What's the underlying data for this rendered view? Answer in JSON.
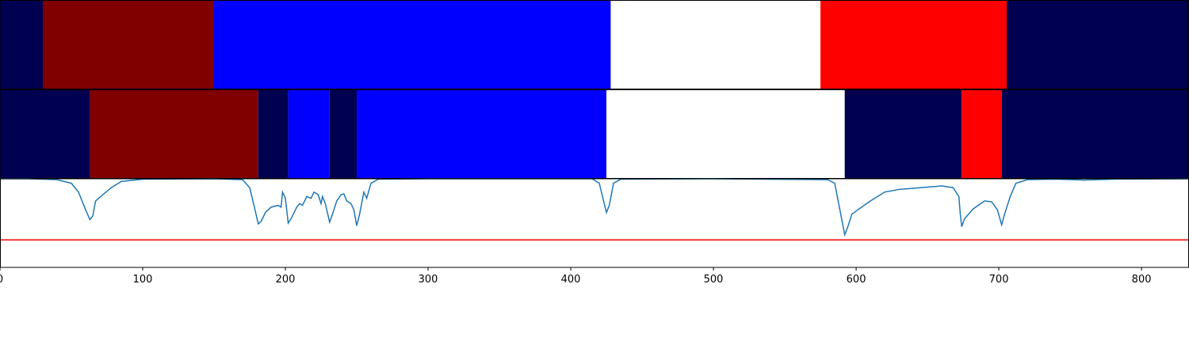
{
  "chart_data": [
    {
      "type": "segments",
      "xlim": [
        0,
        833
      ],
      "segments": [
        {
          "start": 0,
          "end": 30,
          "color": "#000050"
        },
        {
          "start": 30,
          "end": 150,
          "color": "#800000"
        },
        {
          "start": 150,
          "end": 428,
          "color": "#0000ff"
        },
        {
          "start": 428,
          "end": 575,
          "color": "#ffffff"
        },
        {
          "start": 575,
          "end": 705.5,
          "color": "#ff0000"
        },
        {
          "start": 705.5,
          "end": 833,
          "color": "#000050"
        }
      ]
    },
    {
      "type": "segments",
      "xlim": [
        0,
        833
      ],
      "segments": [
        {
          "start": 0,
          "end": 63,
          "color": "#000050"
        },
        {
          "start": 63,
          "end": 181,
          "color": "#800000"
        },
        {
          "start": 181,
          "end": 202,
          "color": "#000050"
        },
        {
          "start": 202,
          "end": 231,
          "color": "#0000ff"
        },
        {
          "start": 231,
          "end": 250,
          "color": "#000050"
        },
        {
          "start": 250,
          "end": 425,
          "color": "#0000ff"
        },
        {
          "start": 425,
          "end": 592,
          "color": "#ffffff"
        },
        {
          "start": 592,
          "end": 674,
          "color": "#000050"
        },
        {
          "start": 674,
          "end": 702,
          "color": "#ff0000"
        },
        {
          "start": 702,
          "end": 833,
          "color": "#000050"
        }
      ]
    },
    {
      "type": "line",
      "xlim": [
        0,
        833
      ],
      "ylim": [
        0,
        1.0
      ],
      "xticks": [
        0,
        100,
        200,
        300,
        400,
        500,
        600,
        700,
        800
      ],
      "color": "#1f77b4",
      "threshold": 0.31,
      "threshold_color": "#ff0000",
      "x": [
        0,
        20,
        40,
        50,
        55,
        60,
        63,
        65,
        67,
        72,
        78,
        85,
        100,
        150,
        170,
        175,
        178,
        181,
        183,
        186,
        190,
        195,
        197,
        198,
        200,
        202,
        204,
        208,
        210,
        212,
        215,
        218,
        220,
        223,
        225,
        226,
        228,
        231,
        233,
        236,
        239,
        241,
        243,
        246,
        248,
        250,
        252,
        255,
        257,
        260,
        265,
        300,
        415,
        420,
        423,
        425,
        427,
        430,
        435,
        500,
        580,
        585,
        588,
        592,
        594,
        597,
        602,
        610,
        620,
        630,
        645,
        660,
        668,
        672,
        673,
        674,
        676,
        682,
        690,
        695,
        699,
        702,
        704,
        708,
        712,
        720,
        740,
        760,
        780,
        833
      ],
      "values": [
        1.0,
        1.0,
        0.99,
        0.95,
        0.85,
        0.65,
        0.54,
        0.58,
        0.75,
        0.82,
        0.9,
        0.97,
        0.995,
        1.0,
        0.99,
        0.9,
        0.7,
        0.49,
        0.52,
        0.62,
        0.68,
        0.7,
        0.68,
        0.85,
        0.78,
        0.5,
        0.55,
        0.68,
        0.72,
        0.7,
        0.8,
        0.78,
        0.85,
        0.82,
        0.72,
        0.8,
        0.72,
        0.51,
        0.6,
        0.75,
        0.82,
        0.83,
        0.75,
        0.72,
        0.65,
        0.47,
        0.6,
        0.85,
        0.78,
        0.95,
        0.995,
        1.0,
        1.0,
        0.95,
        0.75,
        0.62,
        0.7,
        0.95,
        0.995,
        1.0,
        0.99,
        0.95,
        0.7,
        0.37,
        0.45,
        0.6,
        0.66,
        0.75,
        0.85,
        0.88,
        0.9,
        0.92,
        0.9,
        0.8,
        0.6,
        0.46,
        0.55,
        0.66,
        0.75,
        0.74,
        0.65,
        0.48,
        0.6,
        0.8,
        0.95,
        0.99,
        0.995,
        0.985,
        0.995,
        1.0
      ]
    }
  ]
}
